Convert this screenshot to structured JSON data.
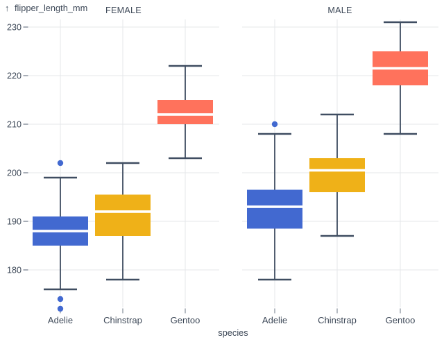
{
  "chart_data": {
    "type": "boxplot",
    "title": "",
    "ylabel_arrow": "↑",
    "ylabel": "flipper_length_mm",
    "xlabel": "species",
    "y_ticks": [
      180,
      190,
      200,
      210,
      220,
      230
    ],
    "y_domain": [
      171.5,
      231.5
    ],
    "grid": true,
    "legend": false,
    "categories": [
      "Adelie",
      "Chinstrap",
      "Gentoo"
    ],
    "series_colors": {
      "Adelie": "#4269d0",
      "Chinstrap": "#efb118",
      "Gentoo": "#ff725c"
    },
    "ui_colors": {
      "text": "#3e4958",
      "grid": "#e4e7ea",
      "whisker": "#3f4d61",
      "median": "#ffffff",
      "tick": "#6e7887",
      "background": "#ffffff"
    },
    "facets": [
      {
        "label": "FEMALE",
        "boxes": [
          {
            "species": "Adelie",
            "whisker_low": 176,
            "q1": 185,
            "median": 188,
            "q3": 191,
            "whisker_high": 199,
            "outliers": [
              202,
              174,
              172
            ]
          },
          {
            "species": "Chinstrap",
            "whisker_low": 178,
            "q1": 187,
            "median": 192,
            "q3": 195.5,
            "whisker_high": 202,
            "outliers": []
          },
          {
            "species": "Gentoo",
            "whisker_low": 203,
            "q1": 210,
            "median": 212,
            "q3": 215,
            "whisker_high": 222,
            "outliers": []
          }
        ]
      },
      {
        "label": "MALE",
        "boxes": [
          {
            "species": "Adelie",
            "whisker_low": 178,
            "q1": 188.5,
            "median": 193,
            "q3": 196.5,
            "whisker_high": 208,
            "outliers": [
              210
            ]
          },
          {
            "species": "Chinstrap",
            "whisker_low": 187,
            "q1": 196,
            "median": 200.5,
            "q3": 203,
            "whisker_high": 212,
            "outliers": []
          },
          {
            "species": "Gentoo",
            "whisker_low": 208,
            "q1": 218,
            "median": 221.5,
            "q3": 225,
            "whisker_high": 231,
            "outliers": []
          }
        ]
      }
    ]
  }
}
